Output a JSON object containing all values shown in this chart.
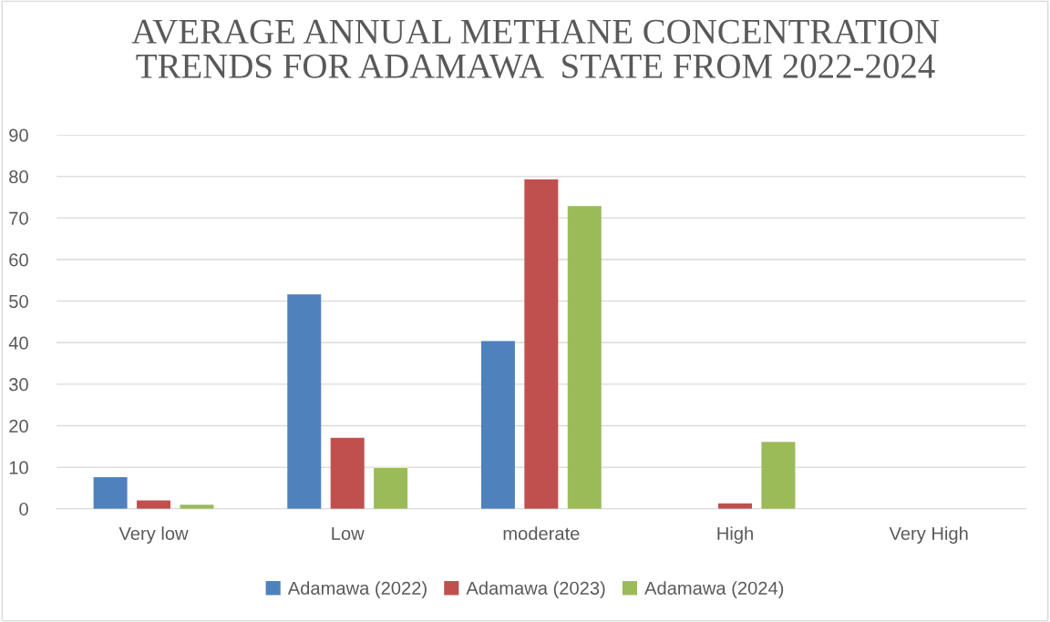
{
  "chart_data": {
    "type": "bar",
    "title": "AVERAGE ANNUAL METHANE CONCENTRATION\nTRENDS FOR ADAMAWA  STATE FROM 2022-2024",
    "categories": [
      "Very low",
      "Low",
      "moderate",
      "High",
      "Very High"
    ],
    "series": [
      {
        "name": "Adamawa (2022)",
        "color": "#4f81bd",
        "values": [
          7.6,
          51.6,
          40.4,
          0,
          0
        ]
      },
      {
        "name": "Adamawa (2023)",
        "color": "#c0504d",
        "values": [
          2.0,
          17.1,
          79.3,
          1.3,
          0
        ]
      },
      {
        "name": "Adamawa (2024)",
        "color": "#9bbb59",
        "values": [
          1.0,
          9.8,
          72.9,
          16.1,
          0
        ]
      }
    ],
    "ylim": [
      0,
      90
    ],
    "yticks": [
      0,
      10,
      20,
      30,
      40,
      50,
      60,
      70,
      80,
      90
    ],
    "grid": "y",
    "legend": "bottom"
  }
}
